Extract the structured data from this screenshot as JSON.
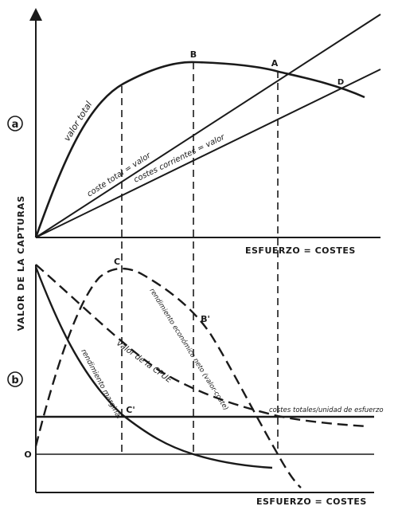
{
  "panel_a": {
    "tag": "a",
    "x_axis_label": "ESFUERZO = COSTES",
    "curve_labels": {
      "total_value": "valor total",
      "total_cost": "coste total = valor",
      "current_cost": "costes corrientes = valor"
    },
    "points": {
      "A": "A",
      "B": "B",
      "D": "D"
    }
  },
  "panel_b": {
    "tag": "b",
    "x_axis_label": "ESFUERZO = COSTES",
    "origin_label": "O",
    "curve_labels": {
      "marginal": "rendimiento marginal",
      "cpue": "valor de la CPUE",
      "net_return": "rendimiento económico neto (valor-coste)",
      "cost_per_effort": "costes totales/unidad de esfuerzo"
    },
    "points": {
      "C": "C",
      "C_prime": "C'",
      "B_prime": "B'"
    }
  },
  "y_axis_label": "VALOR DE LA CAPTURAS"
}
